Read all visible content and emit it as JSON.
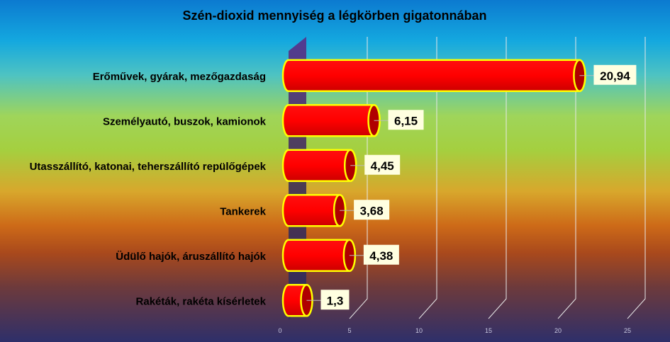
{
  "chart_data": {
    "type": "bar",
    "orientation": "horizontal",
    "style": "3d-cylinder",
    "title": "Szén-dioxid mennyiség a légkörben gigatonnában",
    "categories": [
      "Erőművek, gyárak, mezőgazdaság",
      "Személyautó, buszok, kamionok",
      "Utasszállító, katonai, teherszállító repülőgépek",
      "Tankerek",
      "Üdülő hajók, áruszállító hajók",
      "Rakéták, rakéta kísérletek"
    ],
    "values": [
      20.94,
      6.15,
      4.45,
      3.68,
      4.38,
      1.3
    ],
    "data_labels": [
      "20,94",
      "6,15",
      "4,45",
      "3,68",
      "4,38",
      "1,3"
    ],
    "xlim": [
      0,
      25
    ],
    "xticks": [
      "0",
      "5",
      "10",
      "15",
      "20",
      "25"
    ],
    "grid": true,
    "legend": "none",
    "colors": {
      "bar_fill": "#ff0000",
      "bar_dark": "#b00000",
      "bar_outline": "#ffff00",
      "label_box": "#ffffe0",
      "wall": "#4b2f7a",
      "grid": "#e8e8e8"
    }
  }
}
